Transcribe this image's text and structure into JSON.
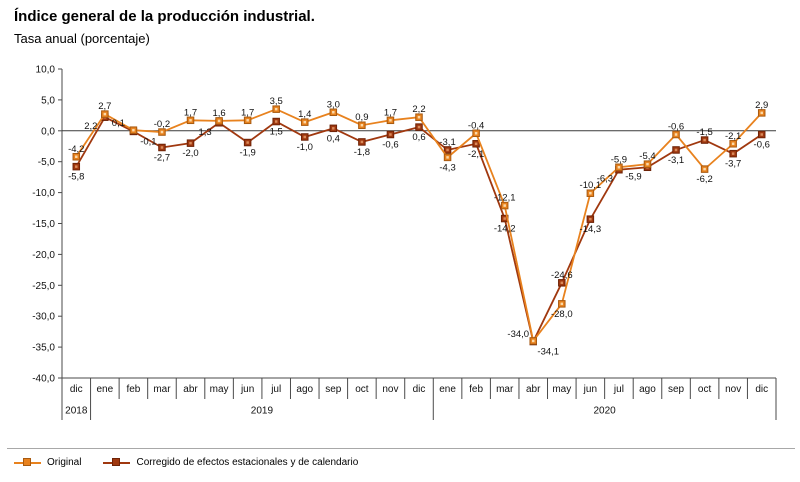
{
  "page": {
    "title": "Índice general de la producción industrial.",
    "subtitle": "Tasa anual (porcentaje)"
  },
  "legend": [
    {
      "label": "Original",
      "color": "#E8821E",
      "border": "#A85A10"
    },
    {
      "label": "Corregido de efectos estacionales y de calendario",
      "color": "#A0380F",
      "border": "#6E2307"
    }
  ],
  "chart_data": {
    "type": "line",
    "title": "Índice general de la producción industrial.",
    "subtitle": "Tasa anual (porcentaje)",
    "ylim": [
      -40,
      10
    ],
    "grid": false,
    "legend_position": "bottom",
    "y_ticks": [
      "10,0",
      "5,0",
      "0,0",
      "-5,0",
      "-10,0",
      "-15,0",
      "-20,0",
      "-25,0",
      "-30,0",
      "-35,0",
      "-40,0"
    ],
    "x": [
      "dic",
      "ene",
      "feb",
      "mar",
      "abr",
      "may",
      "jun",
      "jul",
      "ago",
      "sep",
      "oct",
      "nov",
      "dic",
      "ene",
      "feb",
      "mar",
      "abr",
      "may",
      "jun",
      "jul",
      "ago",
      "sep",
      "oct",
      "nov",
      "dic"
    ],
    "x_years": [
      {
        "label": "2018",
        "months": 1
      },
      {
        "label": "2019",
        "months": 12
      },
      {
        "label": "2020",
        "months": 12
      }
    ],
    "series": [
      {
        "key": "original",
        "name": "Original",
        "color": "#E8821E",
        "marker_border": "#A85A10",
        "marker_center": "#FBD9A8",
        "values": [
          -4.2,
          2.7,
          0.1,
          -0.2,
          1.7,
          1.6,
          1.7,
          3.5,
          1.4,
          3.0,
          0.9,
          1.7,
          2.2,
          -4.3,
          -0.4,
          -12.1,
          -34.0,
          -28.0,
          -10.1,
          -5.9,
          -5.4,
          -0.6,
          -6.2,
          -2.1,
          2.9
        ],
        "labels": [
          "-4,2",
          "2,7",
          "0,1",
          "-0,2",
          "1,7",
          "1,6",
          "1,7",
          "3,5",
          "1,4",
          "3,0",
          "0,9",
          "1,7",
          "2,2",
          "-4,3",
          "-0,4",
          "-12,1",
          "-34,0",
          "-28,0",
          "-10,1",
          "-5,9",
          "-5,4",
          "-0,6",
          "-6,2",
          "-2,1",
          "2,9"
        ]
      },
      {
        "key": "corregido",
        "name": "Corregido de efectos estacionales y de calendario",
        "color": "#A0380F",
        "marker_border": "#6E2307",
        "marker_center": "#D98A5A",
        "values": [
          -5.8,
          2.2,
          -0.1,
          -2.7,
          -2.0,
          1.3,
          -1.9,
          1.5,
          -1.0,
          0.4,
          -1.8,
          -0.6,
          0.6,
          -3.1,
          -2.1,
          -14.2,
          -34.1,
          -24.6,
          -14.3,
          -6.3,
          -5.9,
          -3.1,
          -1.5,
          -3.7,
          -0.6
        ],
        "labels": [
          "-5,8",
          "2,2",
          "-0,1",
          "-2,7",
          "-2,0",
          "1,3",
          "-1,9",
          "1,5",
          "-1,0",
          "0,4",
          "-1,8",
          "-0,6",
          "0,6",
          "-3,1",
          "-2,1",
          "-14,2",
          "-34,1",
          "-24,6",
          "-14,3",
          "-6,3",
          "-5,9",
          "-3,1",
          "-1,5",
          "-3,7",
          "-0,6"
        ]
      }
    ]
  }
}
